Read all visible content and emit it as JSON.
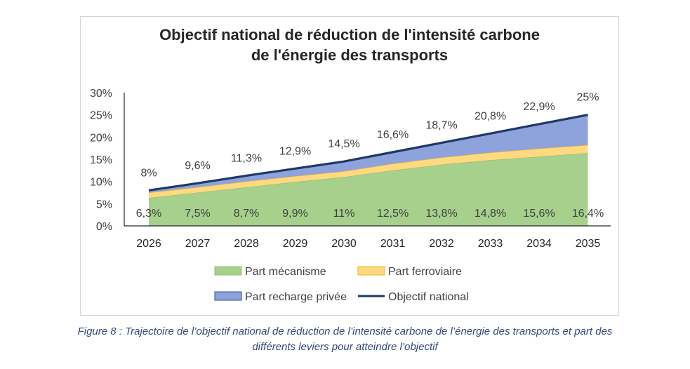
{
  "chart_data": {
    "type": "area",
    "title_line1": "Objectif national de réduction de l'intensité carbone",
    "title_line2": "de l'énergie des transports",
    "categories": [
      "2026",
      "2027",
      "2028",
      "2029",
      "2030",
      "2031",
      "2032",
      "2033",
      "2034",
      "2035"
    ],
    "y_ticks": [
      "30%",
      "25%",
      "20%",
      "15%",
      "10%",
      "5%",
      "0%"
    ],
    "ylim": [
      0,
      30
    ],
    "stacked": true,
    "series": [
      {
        "name": "Part mécanisme",
        "color": "#a7d08c",
        "values": [
          6.3,
          7.5,
          8.7,
          9.9,
          11,
          12.5,
          13.8,
          14.8,
          15.6,
          16.4
        ],
        "labels": [
          "6,3%",
          "7,5%",
          "8,7%",
          "9,9%",
          "11%",
          "12,5%",
          "13,8%",
          "14,8%",
          "15,6%",
          "16,4%"
        ]
      },
      {
        "name": "Part ferroviaire",
        "color": "#ffd97f",
        "values": [
          1.2,
          1.2,
          1.3,
          1.3,
          1.3,
          1.5,
          1.6,
          1.7,
          1.8,
          1.8
        ]
      },
      {
        "name": "Part recharge privée",
        "color": "#8ea3dc",
        "values": [
          0.5,
          0.9,
          1.3,
          1.7,
          2.2,
          2.6,
          3.3,
          4.3,
          5.5,
          6.8
        ]
      }
    ],
    "line": {
      "name": "Objectif national",
      "color": "#1f3864",
      "values": [
        8,
        9.6,
        11.3,
        12.9,
        14.5,
        16.6,
        18.7,
        20.8,
        22.9,
        25
      ],
      "labels": [
        "8%",
        "9,6%",
        "11,3%",
        "12,9%",
        "14,5%",
        "16,6%",
        "18,7%",
        "20,8%",
        "22,9%",
        "25%"
      ]
    }
  },
  "caption": {
    "line1": "Figure 8 : Trajectoire de l’objectif national de réduction de l’intensité carbone de l’énergie des transports et part des",
    "line2": "différents leviers pour atteindre l’objectif"
  }
}
